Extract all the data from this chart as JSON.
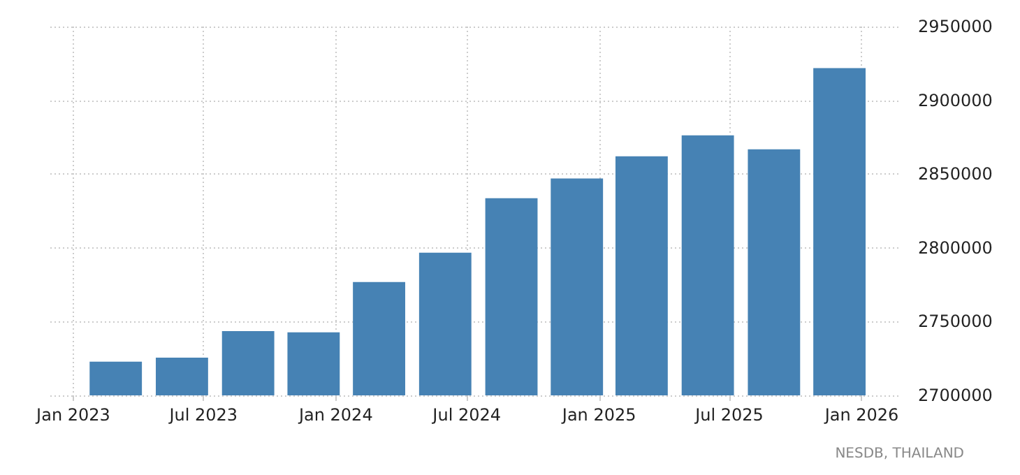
{
  "chart_data": {
    "type": "bar",
    "x": [
      "2023-03",
      "2023-06",
      "2023-09",
      "2023-12",
      "2024-03",
      "2024-06",
      "2024-09",
      "2024-12",
      "2025-03",
      "2025-06",
      "2025-09",
      "2025-12"
    ],
    "values": [
      2722800,
      2725600,
      2743600,
      2742700,
      2776800,
      2796700,
      2833700,
      2847000,
      2862100,
      2876300,
      2866800,
      2921800
    ],
    "color": "#4682b4",
    "xlim": [
      "2022-11-30",
      "2026-02-21"
    ],
    "xticks": [
      {
        "value": "2023-01",
        "label": "Jan 2023"
      },
      {
        "value": "2023-07",
        "label": "Jul 2023"
      },
      {
        "value": "2024-01",
        "label": "Jan 2024"
      },
      {
        "value": "2024-07",
        "label": "Jul 2024"
      },
      {
        "value": "2025-01",
        "label": "Jan 2025"
      },
      {
        "value": "2025-07",
        "label": "Jul 2025"
      },
      {
        "value": "2026-01",
        "label": "Jan 2026"
      }
    ],
    "ylim": [
      2700000,
      2950000
    ],
    "yticks": [
      2700000,
      2750000,
      2800000,
      2850000,
      2900000,
      2950000
    ],
    "grid": true,
    "annotations": [
      "NESDB, THAILAND"
    ]
  }
}
